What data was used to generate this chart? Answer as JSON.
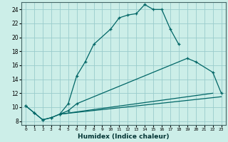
{
  "xlabel": "Humidex (Indice chaleur)",
  "bg_color": "#cceee8",
  "grid_color": "#99cccc",
  "line_color": "#006666",
  "xlim": [
    -0.5,
    23.5
  ],
  "ylim": [
    7.5,
    25.0
  ],
  "xticks": [
    0,
    1,
    2,
    3,
    4,
    5,
    6,
    7,
    8,
    9,
    10,
    11,
    12,
    13,
    14,
    15,
    16,
    17,
    18,
    19,
    20,
    21,
    22,
    23
  ],
  "yticks": [
    8,
    10,
    12,
    14,
    16,
    18,
    20,
    22,
    24
  ],
  "line1_x": [
    0,
    1,
    2,
    3,
    4,
    5,
    6,
    7,
    8,
    10,
    11,
    12,
    13,
    14,
    15,
    16,
    17,
    18
  ],
  "line1_y": [
    10.2,
    9.2,
    8.2,
    8.5,
    9.0,
    10.5,
    14.5,
    16.5,
    19.0,
    21.2,
    22.8,
    23.2,
    23.4,
    24.7,
    24.0,
    24.0,
    21.2,
    19.0
  ],
  "line2_x": [
    0,
    1,
    2,
    3,
    4,
    5,
    6,
    19,
    20,
    22,
    23
  ],
  "line2_y": [
    10.2,
    9.2,
    8.2,
    8.5,
    9.0,
    9.5,
    10.5,
    17.0,
    16.5,
    15.0,
    12.0
  ],
  "line3_x": [
    4,
    22
  ],
  "line3_y": [
    9.0,
    12.0
  ],
  "line4_x": [
    4,
    23
  ],
  "line4_y": [
    9.0,
    11.5
  ]
}
